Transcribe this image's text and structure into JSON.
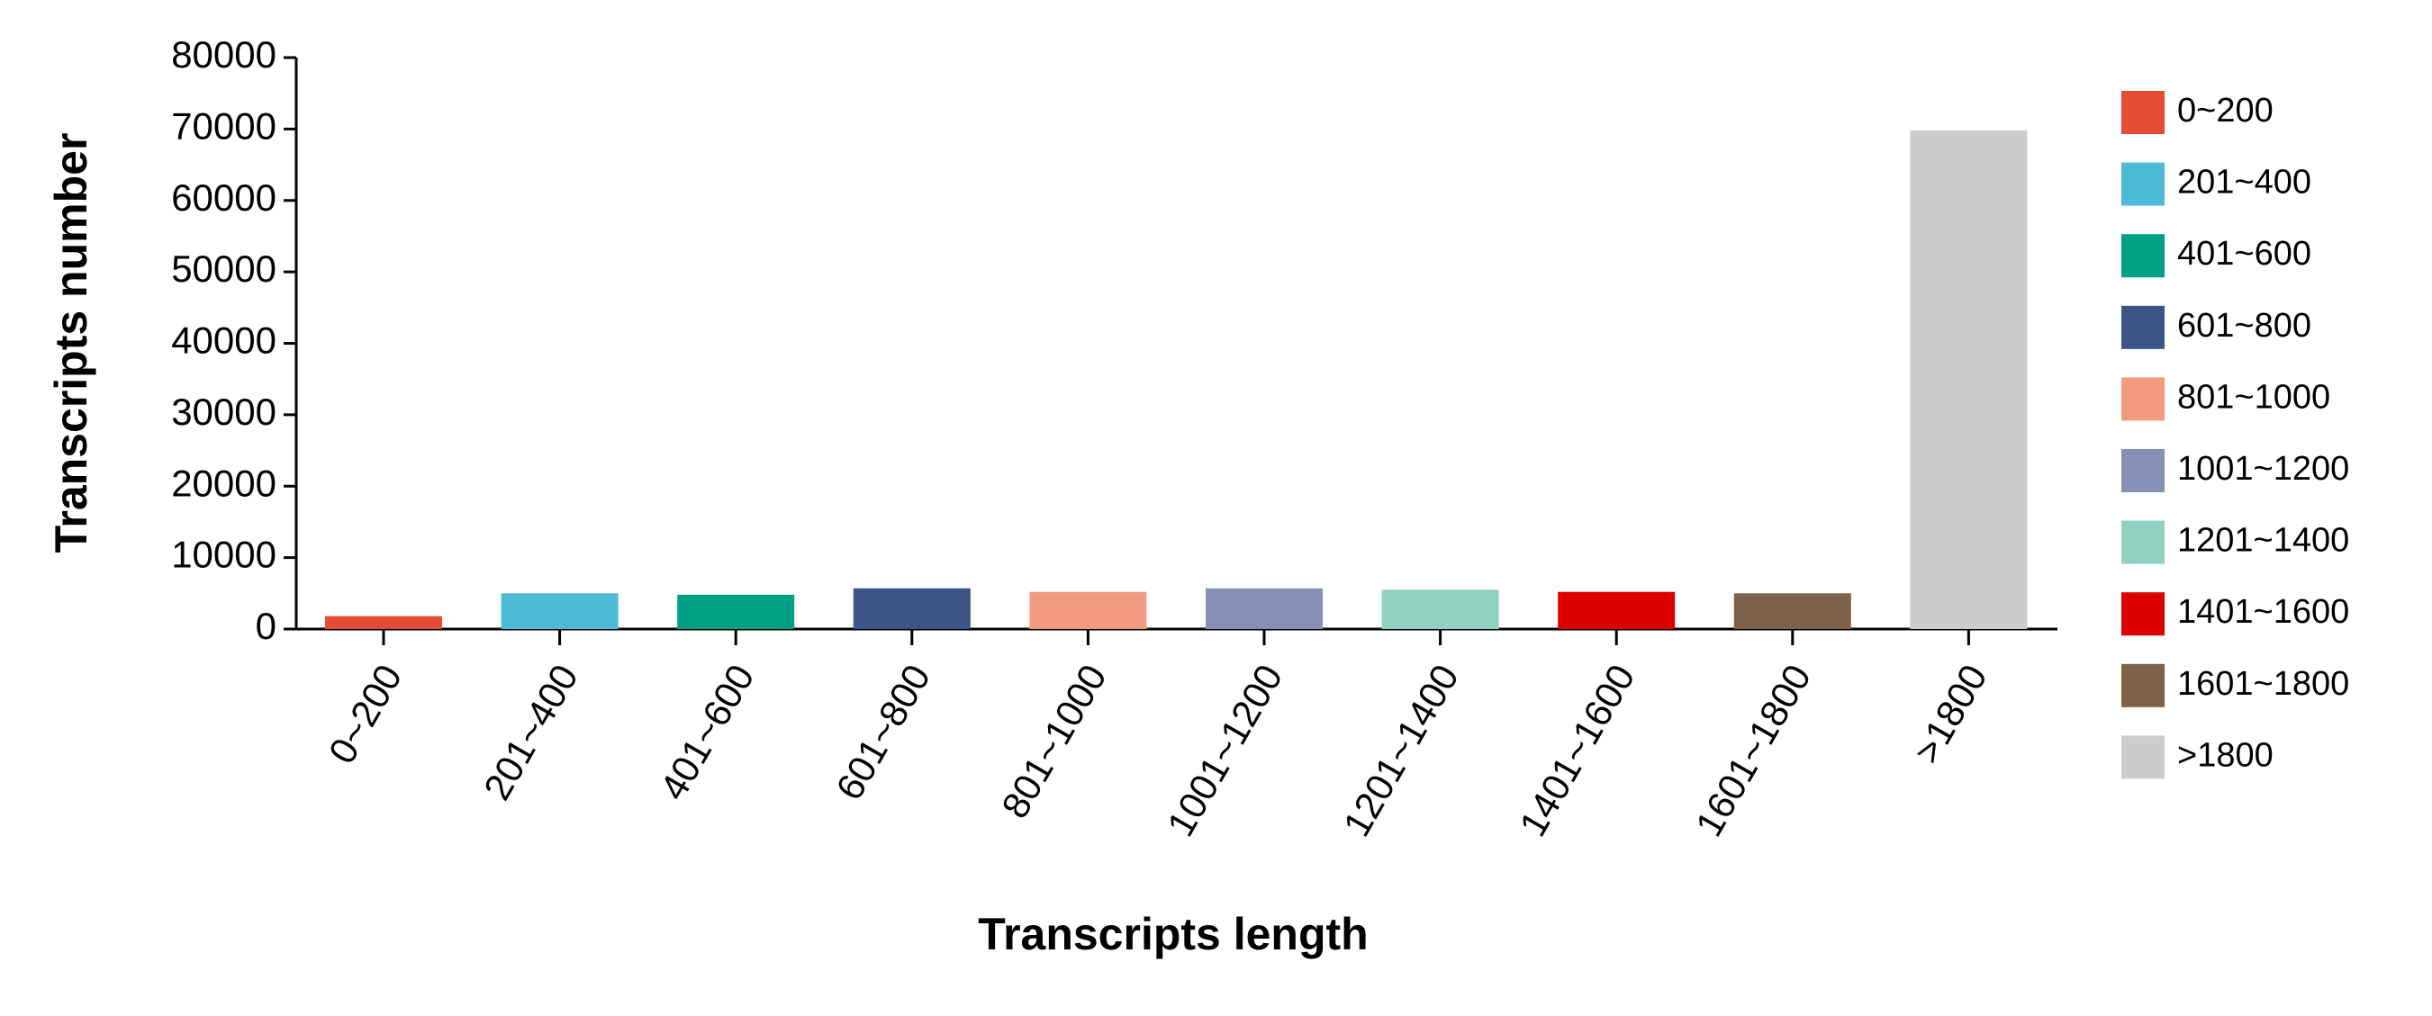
{
  "chart_data": {
    "type": "bar",
    "x_label": "Transcripts length",
    "y_label": "Transcripts number",
    "categories": [
      "0~200",
      "201~400",
      "401~600",
      "601~800",
      "801~1000",
      "1001~1200",
      "1201~1400",
      "1401~1600",
      "1601~1800",
      ">1800"
    ],
    "values": [
      1800,
      5000,
      4800,
      5700,
      5200,
      5700,
      5500,
      5200,
      5000,
      69800
    ],
    "colors": [
      "#e64b35",
      "#4dbbd5",
      "#00a087",
      "#3c5488",
      "#f39b7f",
      "#8491b4",
      "#91d1c2",
      "#dc0000",
      "#7e6148",
      "#cccccc"
    ],
    "ylim": [
      0,
      80000
    ],
    "yticks": [
      0,
      10000,
      20000,
      30000,
      40000,
      50000,
      60000,
      70000,
      80000
    ],
    "grid": false,
    "legend": "right"
  }
}
